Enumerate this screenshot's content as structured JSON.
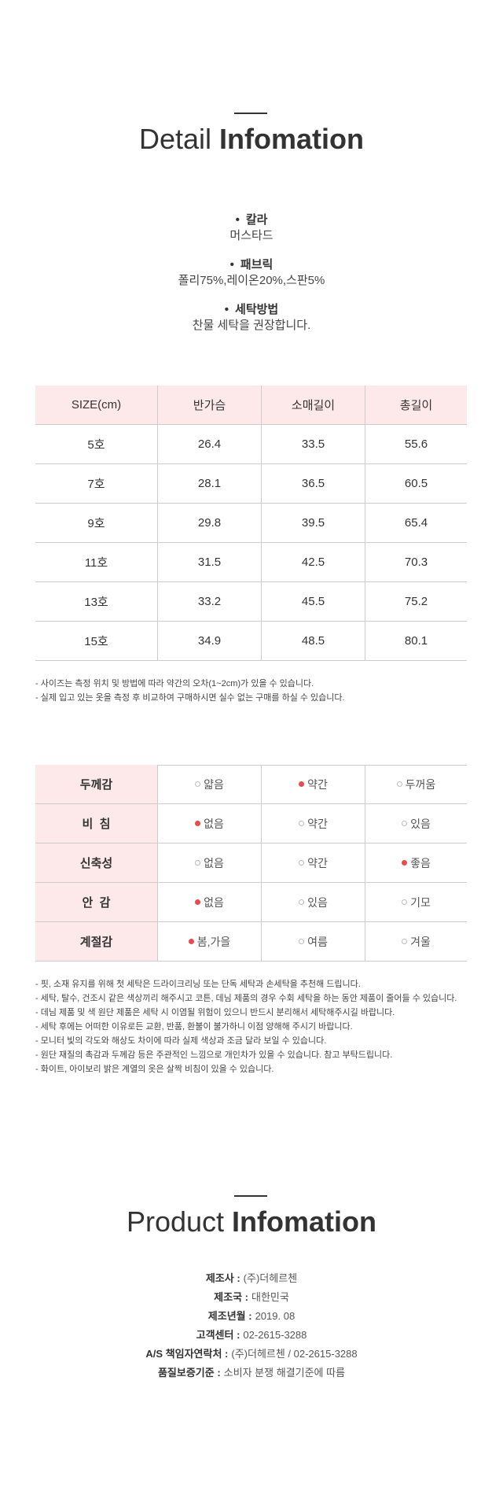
{
  "detail": {
    "title_light": "Detail",
    "title_bold": "Infomation",
    "bullets": [
      {
        "label": "칼라",
        "value": "머스타드"
      },
      {
        "label": "패브릭",
        "value": "폴리75%,레이온20%,스판5%"
      },
      {
        "label": "세탁방법",
        "value": "찬물 세탁을 권장합니다."
      }
    ]
  },
  "size_table": {
    "header": [
      "SIZE(cm)",
      "반가슴",
      "소매길이",
      "총길이"
    ],
    "rows": [
      [
        "5호",
        "26.4",
        "33.5",
        "55.6"
      ],
      [
        "7호",
        "28.1",
        "36.5",
        "60.5"
      ],
      [
        "9호",
        "29.8",
        "39.5",
        "65.4"
      ],
      [
        "11호",
        "31.5",
        "42.5",
        "70.3"
      ],
      [
        "13호",
        "33.2",
        "45.5",
        "75.2"
      ],
      [
        "15호",
        "34.9",
        "48.5",
        "80.1"
      ]
    ],
    "notes": [
      "- 사이즈는 측정 위치 및 방법에 따라 약간의 오차(1~2cm)가 있을 수 있습니다.",
      "- 실제 입고 있는 옷을 측정 후 비교하여 구매하시면 실수 없는 구매를 하실 수 있습니다."
    ]
  },
  "feel_table": {
    "rows": [
      {
        "label": "두께감",
        "options": [
          {
            "text": "얇음",
            "selected": false
          },
          {
            "text": "약간",
            "selected": true
          },
          {
            "text": "두꺼움",
            "selected": false
          }
        ]
      },
      {
        "label": "비  침",
        "options": [
          {
            "text": "없음",
            "selected": true
          },
          {
            "text": "약간",
            "selected": false
          },
          {
            "text": "있음",
            "selected": false
          }
        ]
      },
      {
        "label": "신축성",
        "options": [
          {
            "text": "없음",
            "selected": false
          },
          {
            "text": "약간",
            "selected": false
          },
          {
            "text": "좋음",
            "selected": true
          }
        ]
      },
      {
        "label": "안  감",
        "options": [
          {
            "text": "없음",
            "selected": true
          },
          {
            "text": "있음",
            "selected": false
          },
          {
            "text": "기모",
            "selected": false
          }
        ]
      },
      {
        "label": "계절감",
        "options": [
          {
            "text": "봄,가을",
            "selected": true
          },
          {
            "text": "여름",
            "selected": false
          },
          {
            "text": "겨울",
            "selected": false
          }
        ]
      }
    ],
    "notes": [
      "- 핏, 소재 유지를 위해 첫 세탁은 드라이크리닝 또는 단독 세탁과 손세탁을 추천해 드립니다.",
      "- 세탁, 탈수, 건조시 같은 색상끼리 해주시고 코튼, 데님 제품의 경우 수회 세탁을 하는 동안 제품이 줄어들 수 있습니다.",
      "- 데님 제품 및 색 원단 제품은 세탁 시 이염될 위험이 있으니 반드시 분리해서 세탁해주시길 바랍니다.",
      "- 세탁 후에는 어떠한 이유로든 교환, 반품, 환불이 불가하니 이점 양해해 주시기 바랍니다.",
      "- 모니터 빛의 각도와 해상도 차이에 따라 실제 색상과 조금 달라 보일 수 있습니다.",
      "- 원단 재질의 촉감과 두께감 등은 주관적인 느낌으로 개인차가 있을 수 있습니다. 참고 부탁드립니다.",
      "- 화이트, 아이보리 밝은 계열의 옷은 살짝 비침이 있을 수 있습니다."
    ]
  },
  "product": {
    "title_light": "Product",
    "title_bold": "Infomation",
    "items": [
      {
        "label": "제조사 :",
        "value": "(주)더헤르첸"
      },
      {
        "label": "제조국 :",
        "value": "대한민국"
      },
      {
        "label": "제조년월 :",
        "value": "2019. 08"
      },
      {
        "label": "고객센터 :",
        "value": "02-2615-3288"
      },
      {
        "label": "A/S 책임자연락처 :",
        "value": "(주)더헤르첸 / 02-2615-3288"
      },
      {
        "label": "품질보증기준 :",
        "value": "소비자 분쟁 해결기준에 따름"
      }
    ]
  }
}
